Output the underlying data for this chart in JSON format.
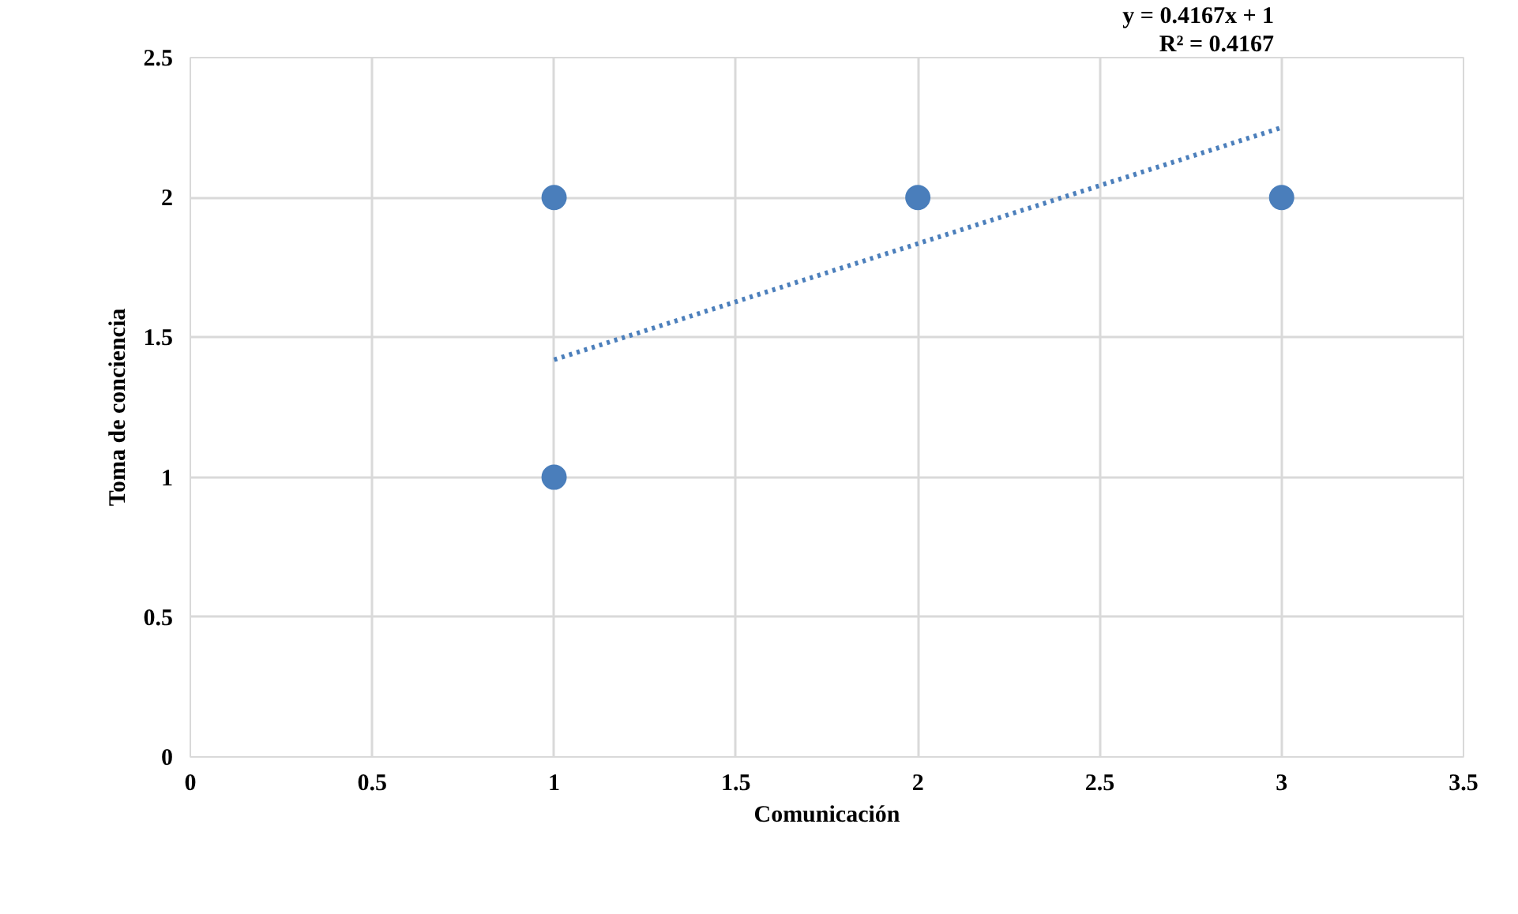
{
  "chart_data": {
    "type": "scatter",
    "xlabel": "Comunicación",
    "ylabel": "Toma de conciencia",
    "xlim": [
      0,
      3.5
    ],
    "xticks": [
      0,
      0.5,
      1,
      1.5,
      2,
      2.5,
      3,
      3.5
    ],
    "ylim": [
      0,
      2.5
    ],
    "yticks": [
      0,
      0.5,
      1,
      1.5,
      2,
      2.5
    ],
    "grid": true,
    "marker": "circle",
    "series": [
      {
        "color": "#4a7ebb",
        "x": [
          1,
          1,
          2,
          3
        ],
        "values": [
          2,
          1,
          2,
          2
        ]
      },
      {
        "type": "line",
        "color": "#4a7ebb",
        "line_style": "dotted",
        "marker": "none",
        "x": [
          1,
          3
        ],
        "values": [
          1.42,
          2.25
        ]
      }
    ],
    "annotations": [
      "y = 0.4167x + 1",
      "R² = 0.4167"
    ]
  }
}
